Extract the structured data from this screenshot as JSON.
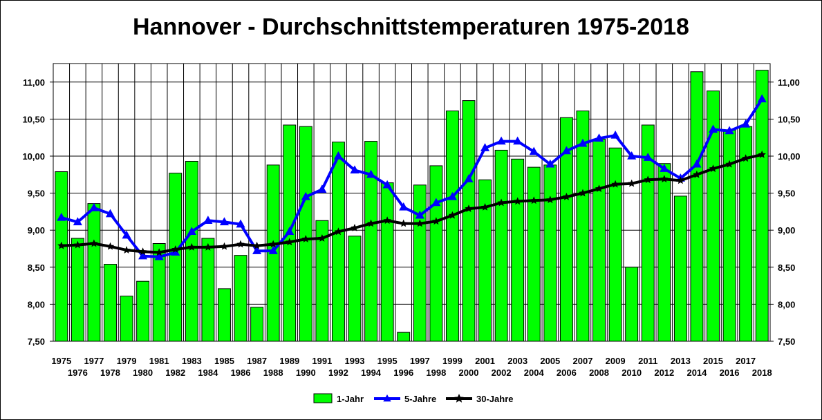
{
  "chart_data": {
    "type": "bar",
    "title": "Hannover - Durchschnittstemperaturen 1975-2018",
    "xlabel": "",
    "ylabel": "",
    "ylim": [
      7.5,
      11.25
    ],
    "yticks": [
      "7,50",
      "8,00",
      "8,50",
      "9,00",
      "9,50",
      "10,00",
      "10,50",
      "11,00"
    ],
    "ytick_values": [
      7.5,
      8.0,
      8.5,
      9.0,
      9.5,
      10.0,
      10.5,
      11.0
    ],
    "grid": true,
    "legend_position": "bottom",
    "categories": [
      "1975",
      "1976",
      "1977",
      "1978",
      "1979",
      "1980",
      "1981",
      "1982",
      "1983",
      "1984",
      "1985",
      "1986",
      "1987",
      "1988",
      "1989",
      "1990",
      "1991",
      "1992",
      "1993",
      "1994",
      "1995",
      "1996",
      "1997",
      "1998",
      "1999",
      "2000",
      "2001",
      "2002",
      "2003",
      "2004",
      "2005",
      "2006",
      "2007",
      "2008",
      "2009",
      "2010",
      "2011",
      "2012",
      "2013",
      "2014",
      "2015",
      "2016",
      "2017",
      "2018"
    ],
    "series": [
      {
        "name": "1-Jahr",
        "kind": "bar",
        "color": "#00ff00",
        "values": [
          9.79,
          8.89,
          9.36,
          8.54,
          8.11,
          8.31,
          8.82,
          9.77,
          9.93,
          8.89,
          8.21,
          8.66,
          7.96,
          9.88,
          10.42,
          10.4,
          9.13,
          10.19,
          8.92,
          10.2,
          9.64,
          7.62,
          9.61,
          9.87,
          10.61,
          10.75,
          9.68,
          10.08,
          9.96,
          9.85,
          9.88,
          10.52,
          10.61,
          10.23,
          10.11,
          8.5,
          10.42,
          9.9,
          9.46,
          11.14,
          10.88,
          10.35,
          10.4,
          11.16
        ]
      },
      {
        "name": "5-Jahre",
        "kind": "line",
        "color": "#0000ff",
        "values": [
          9.17,
          9.11,
          9.3,
          9.22,
          8.93,
          8.65,
          8.64,
          8.7,
          8.98,
          9.13,
          9.11,
          9.08,
          8.72,
          8.72,
          8.98,
          9.45,
          9.55,
          10.0,
          9.81,
          9.75,
          9.61,
          9.31,
          9.2,
          9.37,
          9.45,
          9.69,
          10.11,
          10.2,
          10.2,
          10.06,
          9.89,
          10.07,
          10.17,
          10.24,
          10.28,
          10.0,
          9.98,
          9.83,
          9.7,
          9.89,
          10.36,
          10.34,
          10.43,
          10.77
        ]
      },
      {
        "name": "30-Jahre",
        "kind": "line",
        "color": "#000000",
        "values": [
          8.79,
          8.8,
          8.82,
          8.78,
          8.73,
          8.71,
          8.7,
          8.74,
          8.77,
          8.77,
          8.78,
          8.81,
          8.79,
          8.81,
          8.84,
          8.88,
          8.89,
          8.98,
          9.03,
          9.09,
          9.13,
          9.09,
          9.09,
          9.12,
          9.2,
          9.29,
          9.31,
          9.37,
          9.39,
          9.4,
          9.41,
          9.45,
          9.5,
          9.56,
          9.62,
          9.63,
          9.68,
          9.69,
          9.67,
          9.75,
          9.83,
          9.89,
          9.97,
          10.02
        ]
      }
    ]
  }
}
